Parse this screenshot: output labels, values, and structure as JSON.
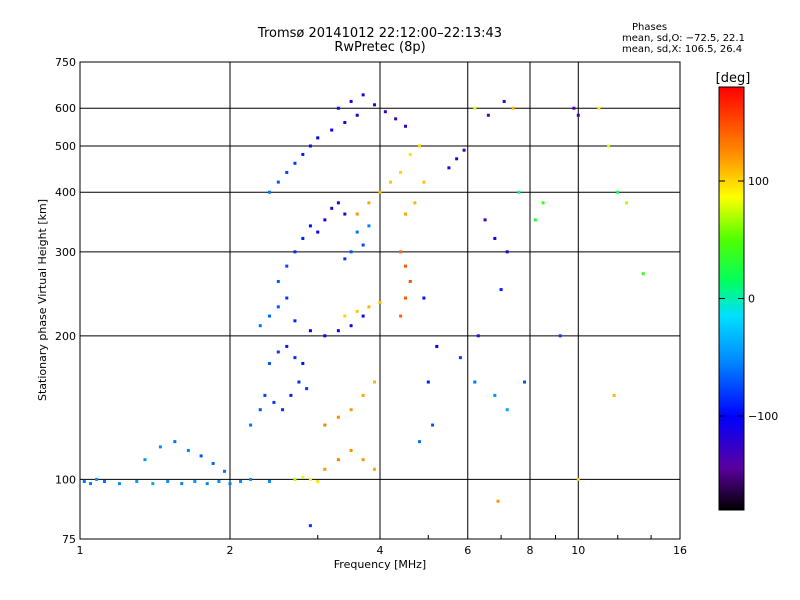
{
  "header": {
    "title_line1": "Tromsø 20141012 22:12:00–22:13:43",
    "title_line2": "RwPretec (8p)"
  },
  "stats": {
    "heading": "Phases",
    "line_o": "mean, sd,O: −72.5, 22.1",
    "line_x": "mean, sd,X: 106.5, 26.4"
  },
  "colorbar": {
    "label": "[deg]",
    "ticks": [
      "100",
      "0",
      "−100"
    ],
    "tick_values": [
      100,
      0,
      -100
    ],
    "range": [
      -180,
      180
    ]
  },
  "chart_data": {
    "type": "scatter",
    "title": "Tromsø 20141012 22:12:00–22:13:43",
    "subtitle": "RwPretec (8p)",
    "xlabel": "Frequency [MHz]",
    "ylabel": "Stationary phase Virtual Height [km]",
    "x_scale": "log",
    "y_scale": "log",
    "xlim": [
      1,
      16
    ],
    "ylim": [
      75,
      750
    ],
    "x_ticks": [
      1,
      2,
      4,
      6,
      8,
      10,
      16
    ],
    "x_tick_labels": [
      "1",
      "2",
      "4",
      "6",
      "8",
      "10",
      "16"
    ],
    "y_ticks": [
      75,
      100,
      200,
      300,
      400,
      500,
      600,
      750
    ],
    "y_tick_labels": [
      "75",
      "100",
      "200",
      "300",
      "400",
      "500",
      "600",
      "750"
    ],
    "grid": true,
    "color_variable": "phase",
    "color_range": [
      -180,
      180
    ],
    "points": [
      [
        1.02,
        99,
        -60
      ],
      [
        1.05,
        98,
        -55
      ],
      [
        1.08,
        100,
        -50
      ],
      [
        1.12,
        99,
        -60
      ],
      [
        1.2,
        98,
        -50
      ],
      [
        1.3,
        99,
        -45
      ],
      [
        1.4,
        98,
        -40
      ],
      [
        1.5,
        99,
        -50
      ],
      [
        1.6,
        98,
        -55
      ],
      [
        1.7,
        99,
        -48
      ],
      [
        1.8,
        98,
        -52
      ],
      [
        1.9,
        99,
        -50
      ],
      [
        2.0,
        98,
        -55
      ],
      [
        2.1,
        99,
        -50
      ],
      [
        2.2,
        100,
        -52
      ],
      [
        2.4,
        99,
        -50
      ],
      [
        1.35,
        110,
        -45
      ],
      [
        1.45,
        117,
        -50
      ],
      [
        1.55,
        120,
        -60
      ],
      [
        1.65,
        115,
        -55
      ],
      [
        1.75,
        112,
        -70
      ],
      [
        1.85,
        108,
        -65
      ],
      [
        1.95,
        104,
        -60
      ],
      [
        2.2,
        130,
        -60
      ],
      [
        2.3,
        140,
        -70
      ],
      [
        2.35,
        150,
        -75
      ],
      [
        2.45,
        145,
        -80
      ],
      [
        2.55,
        140,
        -85
      ],
      [
        2.65,
        150,
        -90
      ],
      [
        2.75,
        160,
        -85
      ],
      [
        2.85,
        155,
        -80
      ],
      [
        2.4,
        175,
        -70
      ],
      [
        2.5,
        185,
        -80
      ],
      [
        2.6,
        190,
        -90
      ],
      [
        2.7,
        180,
        -85
      ],
      [
        2.8,
        175,
        -95
      ],
      [
        2.3,
        210,
        -60
      ],
      [
        2.4,
        220,
        -65
      ],
      [
        2.5,
        230,
        -70
      ],
      [
        2.6,
        240,
        -80
      ],
      [
        2.7,
        215,
        -90
      ],
      [
        2.9,
        205,
        -100
      ],
      [
        3.1,
        200,
        -105
      ],
      [
        3.3,
        205,
        -110
      ],
      [
        3.5,
        210,
        -115
      ],
      [
        3.7,
        220,
        -110
      ],
      [
        2.5,
        260,
        -70
      ],
      [
        2.6,
        280,
        -75
      ],
      [
        2.7,
        300,
        -85
      ],
      [
        2.8,
        320,
        -90
      ],
      [
        2.9,
        340,
        -95
      ],
      [
        3.0,
        330,
        -110
      ],
      [
        3.1,
        350,
        -115
      ],
      [
        3.2,
        370,
        -120
      ],
      [
        3.3,
        380,
        -115
      ],
      [
        3.4,
        360,
        -120
      ],
      [
        2.4,
        400,
        -60
      ],
      [
        2.5,
        420,
        -70
      ],
      [
        2.6,
        440,
        -75
      ],
      [
        2.7,
        460,
        -80
      ],
      [
        2.8,
        480,
        -90
      ],
      [
        2.9,
        500,
        -95
      ],
      [
        3.0,
        520,
        -100
      ],
      [
        3.2,
        540,
        -105
      ],
      [
        3.4,
        560,
        -110
      ],
      [
        3.6,
        580,
        -115
      ],
      [
        3.3,
        600,
        -110
      ],
      [
        3.5,
        620,
        -115
      ],
      [
        3.7,
        640,
        -120
      ],
      [
        3.9,
        610,
        -125
      ],
      [
        4.1,
        590,
        -130
      ],
      [
        4.3,
        570,
        -128
      ],
      [
        4.5,
        550,
        -125
      ],
      [
        3.6,
        330,
        -60
      ],
      [
        3.8,
        340,
        -55
      ],
      [
        3.5,
        300,
        -70
      ],
      [
        3.7,
        310,
        -75
      ],
      [
        3.4,
        290,
        -80
      ],
      [
        2.7,
        100,
        70
      ],
      [
        2.8,
        101,
        80
      ],
      [
        2.9,
        100,
        90
      ],
      [
        3.0,
        99,
        95
      ],
      [
        3.1,
        105,
        120
      ],
      [
        3.3,
        110,
        130
      ],
      [
        3.5,
        115,
        125
      ],
      [
        3.7,
        110,
        120
      ],
      [
        3.9,
        105,
        115
      ],
      [
        3.1,
        130,
        130
      ],
      [
        3.3,
        135,
        125
      ],
      [
        3.5,
        140,
        120
      ],
      [
        3.7,
        150,
        115
      ],
      [
        3.9,
        160,
        110
      ],
      [
        3.4,
        220,
        100
      ],
      [
        3.6,
        225,
        105
      ],
      [
        3.8,
        230,
        110
      ],
      [
        4.0,
        235,
        108
      ],
      [
        3.6,
        360,
        120
      ],
      [
        3.8,
        380,
        115
      ],
      [
        4.0,
        400,
        110
      ],
      [
        4.2,
        420,
        105
      ],
      [
        4.4,
        440,
        100
      ],
      [
        4.6,
        480,
        95
      ],
      [
        4.8,
        500,
        100
      ],
      [
        4.4,
        300,
        140
      ],
      [
        4.5,
        280,
        145
      ],
      [
        4.6,
        260,
        150
      ],
      [
        4.5,
        240,
        145
      ],
      [
        4.4,
        220,
        140
      ],
      [
        4.5,
        360,
        115
      ],
      [
        4.7,
        380,
        110
      ],
      [
        4.9,
        420,
        105
      ],
      [
        5.5,
        450,
        -120
      ],
      [
        5.7,
        470,
        -125
      ],
      [
        5.9,
        490,
        -130
      ],
      [
        6.2,
        600,
        80
      ],
      [
        6.6,
        580,
        -140
      ],
      [
        7.1,
        620,
        -130
      ],
      [
        7.4,
        600,
        110
      ],
      [
        7.6,
        400,
        0
      ],
      [
        6.5,
        350,
        -130
      ],
      [
        6.8,
        320,
        -110
      ],
      [
        7.2,
        300,
        -120
      ],
      [
        7.0,
        250,
        -90
      ],
      [
        5.8,
        180,
        -80
      ],
      [
        6.2,
        160,
        -60
      ],
      [
        6.8,
        150,
        -50
      ],
      [
        7.2,
        140,
        -40
      ],
      [
        8.2,
        350,
        30
      ],
      [
        8.5,
        380,
        40
      ],
      [
        9.2,
        200,
        -80
      ],
      [
        9.8,
        600,
        -140
      ],
      [
        10.0,
        580,
        -130
      ],
      [
        10.0,
        100,
        100
      ],
      [
        11.0,
        600,
        90
      ],
      [
        11.5,
        500,
        80
      ],
      [
        12.5,
        380,
        70
      ],
      [
        13.5,
        270,
        40
      ],
      [
        12.0,
        400,
        20
      ],
      [
        5.0,
        160,
        -90
      ],
      [
        5.2,
        190,
        -100
      ],
      [
        4.9,
        240,
        -95
      ],
      [
        5.1,
        130,
        -70
      ],
      [
        4.8,
        120,
        -60
      ],
      [
        2.9,
        80,
        -80
      ],
      [
        6.9,
        90,
        120
      ],
      [
        6.3,
        200,
        -90
      ],
      [
        7.8,
        160,
        -70
      ],
      [
        11.8,
        150,
        110
      ]
    ]
  }
}
